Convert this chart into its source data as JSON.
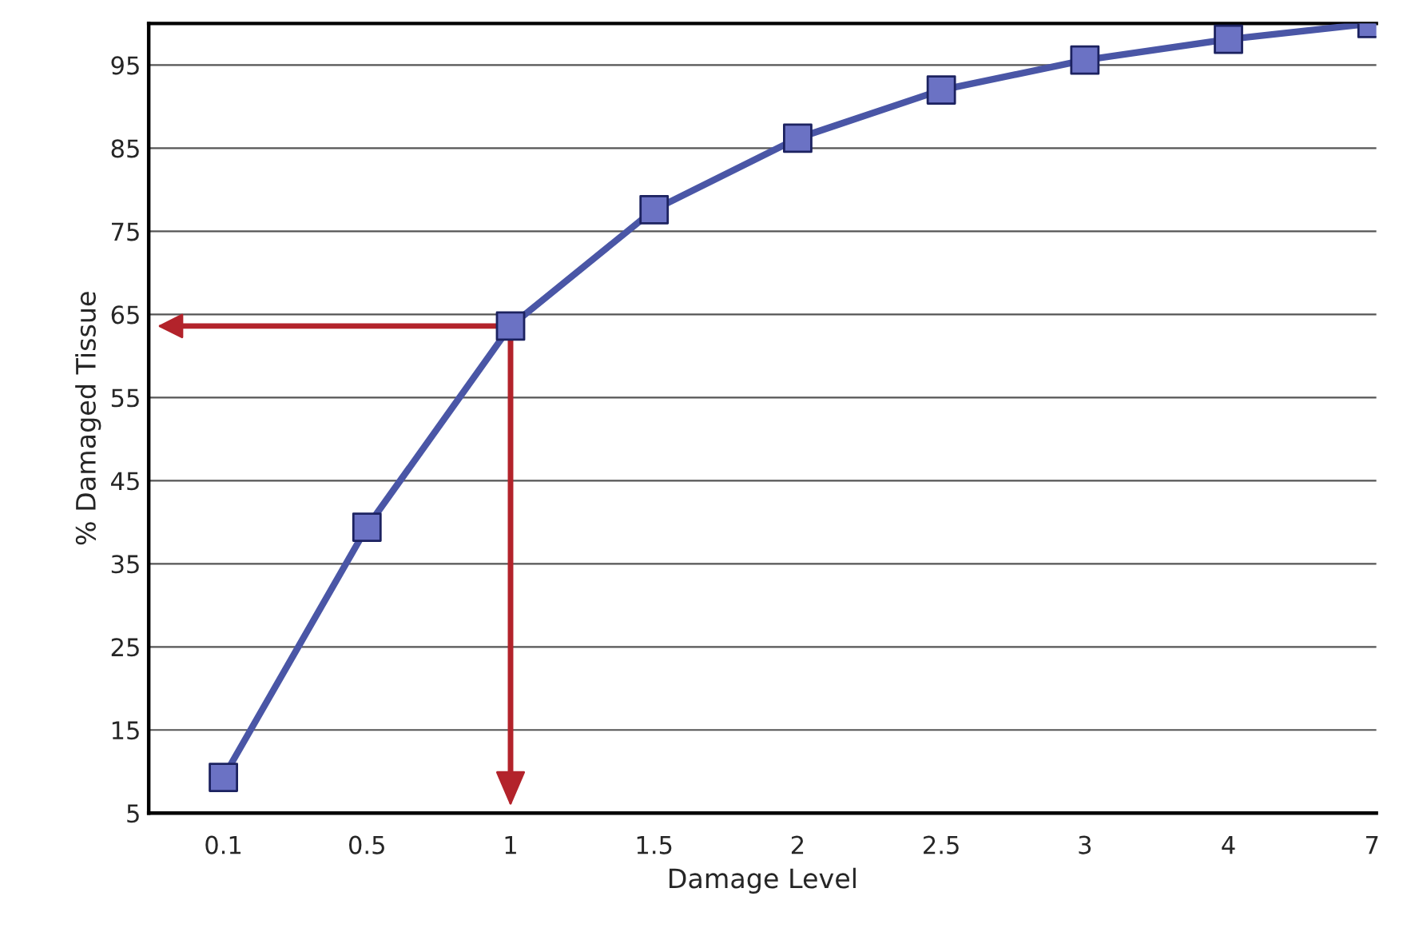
{
  "chart_data": {
    "type": "line",
    "xlabel": "Damage Level",
    "ylabel": "% Damaged Tissue",
    "categories": [
      "0.1",
      "0.5",
      "1",
      "1.5",
      "2",
      "2.5",
      "3",
      "4",
      "7"
    ],
    "series": [
      {
        "color": "#4a56a6",
        "values": [
          9.3,
          39.4,
          63.6,
          77.6,
          86.2,
          92,
          95.6,
          98.1,
          100
        ]
      }
    ],
    "ylim": [
      5,
      100
    ],
    "yticks": [
      5,
      15,
      25,
      35,
      45,
      55,
      65,
      75,
      85,
      95
    ],
    "ref_lines": [
      {
        "axis": "y",
        "value": 63.6,
        "color": "#b3232b"
      },
      {
        "axis": "x",
        "value": "1",
        "color": "#b3232b"
      }
    ],
    "grid": "y",
    "marker": "square",
    "line_style": "solid"
  }
}
